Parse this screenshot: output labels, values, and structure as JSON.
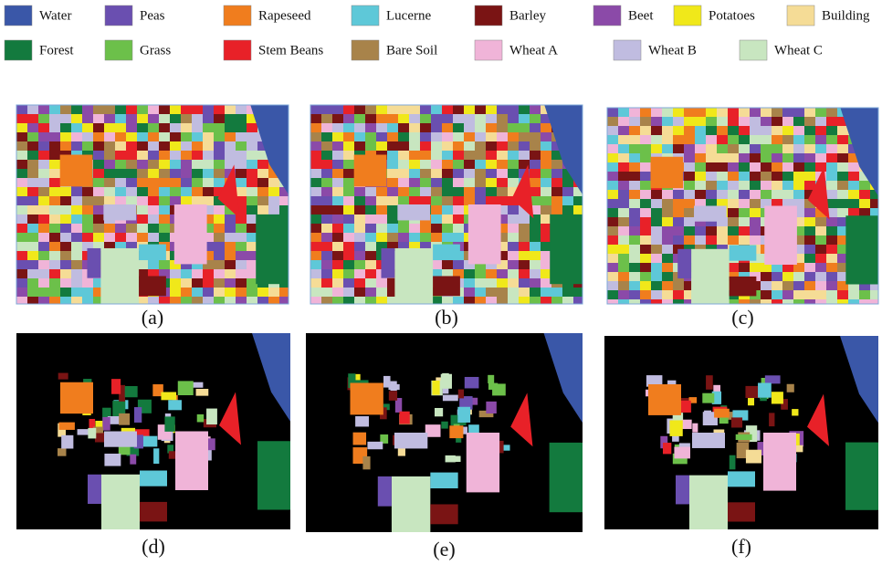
{
  "legend": [
    {
      "name": "Water",
      "color": "#3a57a8"
    },
    {
      "name": "Peas",
      "color": "#6a4fb0"
    },
    {
      "name": "Rapeseed",
      "color": "#f07d1e"
    },
    {
      "name": "Lucerne",
      "color": "#5ec8d8"
    },
    {
      "name": "Barley",
      "color": "#7a1414"
    },
    {
      "name": "Beet",
      "color": "#8b4aa8"
    },
    {
      "name": "Potatoes",
      "color": "#f0e81a"
    },
    {
      "name": "Building",
      "color": "#f5dc96"
    },
    {
      "name": "Forest",
      "color": "#137a3e"
    },
    {
      "name": "Grass",
      "color": "#6cc04a"
    },
    {
      "name": "Stem Beans",
      "color": "#e82128"
    },
    {
      "name": "Bare Soil",
      "color": "#a8834a"
    },
    {
      "name": "Wheat A",
      "color": "#f0b4d8"
    },
    {
      "name": "Wheat B",
      "color": "#c0bce0"
    },
    {
      "name": "Wheat C",
      "color": "#c8e6c0"
    }
  ],
  "panels": [
    "(a)",
    "(b)",
    "(c)",
    "(d)",
    "(e)",
    "(f)"
  ]
}
